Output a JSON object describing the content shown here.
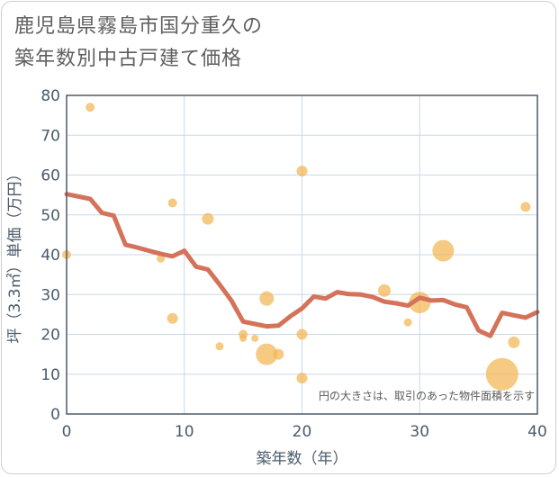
{
  "title_line1": "鹿児島県霧島市国分重久の",
  "title_line2": "築年数別中古戸建て価格",
  "chart_data": {
    "type": "scatter+line",
    "title": "鹿児島県霧島市国分重久の築年数別中古戸建て価格",
    "xlabel": "築年数（年）",
    "ylabel": "坪（3.3㎡）単価（万円）",
    "xlim": [
      0,
      40
    ],
    "ylim": [
      0,
      80
    ],
    "xticks": [
      0,
      10,
      20,
      30,
      40
    ],
    "yticks": [
      0,
      10,
      20,
      30,
      40,
      50,
      60,
      70,
      80
    ],
    "grid": true,
    "note": "円の大きさは、取引のあった物件面積を示す",
    "colors": {
      "bubble": "#f2b552",
      "line": "#d4725a",
      "grid": "#c8d8e8",
      "axis": "#4a5a6a"
    },
    "bubbles": [
      {
        "x": 0,
        "y": 40,
        "size": 8
      },
      {
        "x": 2,
        "y": 77,
        "size": 8
      },
      {
        "x": 8,
        "y": 39,
        "size": 7
      },
      {
        "x": 9,
        "y": 53,
        "size": 8
      },
      {
        "x": 9,
        "y": 24,
        "size": 10
      },
      {
        "x": 12,
        "y": 49,
        "size": 11
      },
      {
        "x": 13,
        "y": 17,
        "size": 7
      },
      {
        "x": 15,
        "y": 20,
        "size": 8
      },
      {
        "x": 15,
        "y": 19,
        "size": 6
      },
      {
        "x": 16,
        "y": 19,
        "size": 6
      },
      {
        "x": 17,
        "y": 29,
        "size": 14
      },
      {
        "x": 17,
        "y": 15,
        "size": 22
      },
      {
        "x": 18,
        "y": 15,
        "size": 10
      },
      {
        "x": 20,
        "y": 61,
        "size": 10
      },
      {
        "x": 20,
        "y": 20,
        "size": 10
      },
      {
        "x": 20,
        "y": 9,
        "size": 10
      },
      {
        "x": 27,
        "y": 31,
        "size": 12
      },
      {
        "x": 29,
        "y": 23,
        "size": 7
      },
      {
        "x": 30,
        "y": 28,
        "size": 22
      },
      {
        "x": 32,
        "y": 41,
        "size": 22
      },
      {
        "x": 37,
        "y": 10,
        "size": 34
      },
      {
        "x": 38,
        "y": 18,
        "size": 11
      },
      {
        "x": 39,
        "y": 52,
        "size": 9
      }
    ],
    "trend": {
      "x": [
        0,
        2,
        3,
        4,
        5,
        6,
        7,
        8,
        9,
        10,
        11,
        12,
        13,
        14,
        15,
        16,
        17,
        18,
        19,
        20,
        21,
        22,
        23,
        24,
        25,
        26,
        27,
        28,
        29,
        30,
        31,
        32,
        33,
        34,
        35,
        36,
        37,
        38,
        39,
        40
      ],
      "y": [
        55.2,
        54,
        50.5,
        49.8,
        42.5,
        41.8,
        41,
        40.2,
        39.6,
        41,
        37,
        36.3,
        32.5,
        28.5,
        23.2,
        22.6,
        22,
        22.2,
        24.5,
        26.5,
        29.5,
        29,
        30.6,
        30.1,
        30,
        29.4,
        28.2,
        27.8,
        27.2,
        29.2,
        28.5,
        28.6,
        27.5,
        26.8,
        21,
        19.6,
        25.4,
        24.8,
        24.2,
        25.6
      ]
    }
  }
}
